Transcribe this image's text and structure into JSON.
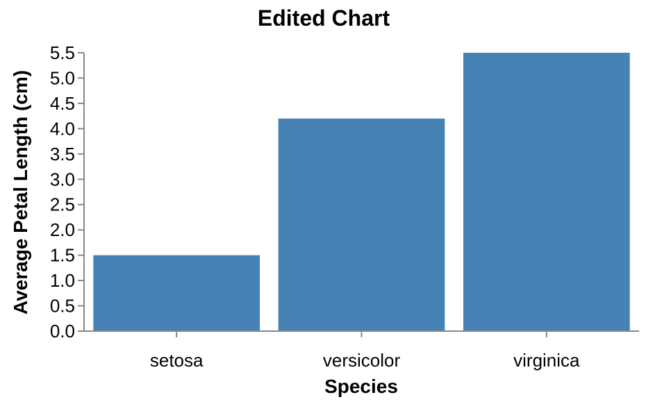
{
  "chart_data": {
    "type": "bar",
    "title": "Edited Chart",
    "xlabel": "Species",
    "ylabel": "Average Petal Length (cm)",
    "categories": [
      "setosa",
      "versicolor",
      "virginica"
    ],
    "values": [
      1.5,
      4.2,
      5.5
    ],
    "ylim": [
      0,
      5.5
    ],
    "yticks": [
      "0.0",
      "0.5",
      "1.0",
      "1.5",
      "2.0",
      "2.5",
      "3.0",
      "3.5",
      "4.0",
      "4.5",
      "5.0",
      "5.5"
    ],
    "grid": false,
    "bar_color": "#4682b4",
    "axis_color": "#888888"
  }
}
